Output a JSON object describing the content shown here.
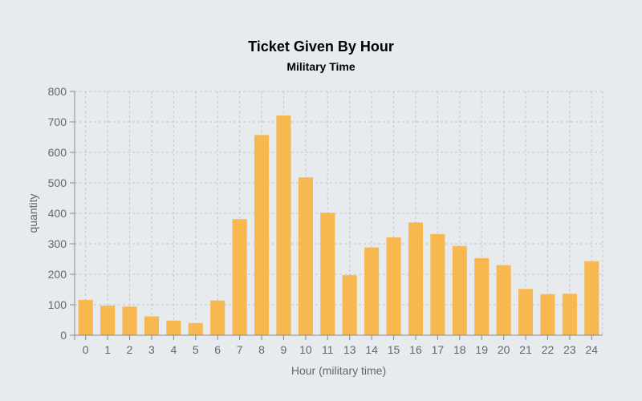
{
  "chart_data": {
    "type": "bar",
    "title": "Ticket Given By Hour",
    "subtitle": "Military Time",
    "xlabel": "Hour (military time)",
    "ylabel": "quantity",
    "ylim": [
      0,
      800
    ],
    "yticks": [
      0,
      100,
      200,
      300,
      400,
      500,
      600,
      700,
      800
    ],
    "grid": true,
    "bar_color": "#f6b84f",
    "background": "#e7ebee",
    "categories": [
      "0",
      "1",
      "2",
      "3",
      "4",
      "5",
      "6",
      "7",
      "8",
      "9",
      "10",
      "11",
      "13",
      "14",
      "15",
      "16",
      "17",
      "18",
      "19",
      "20",
      "21",
      "22",
      "23",
      "24"
    ],
    "values": [
      116,
      97,
      94,
      62,
      48,
      40,
      114,
      381,
      657,
      721,
      518,
      402,
      197,
      288,
      321,
      370,
      332,
      293,
      253,
      230,
      152,
      135,
      136,
      243
    ]
  }
}
